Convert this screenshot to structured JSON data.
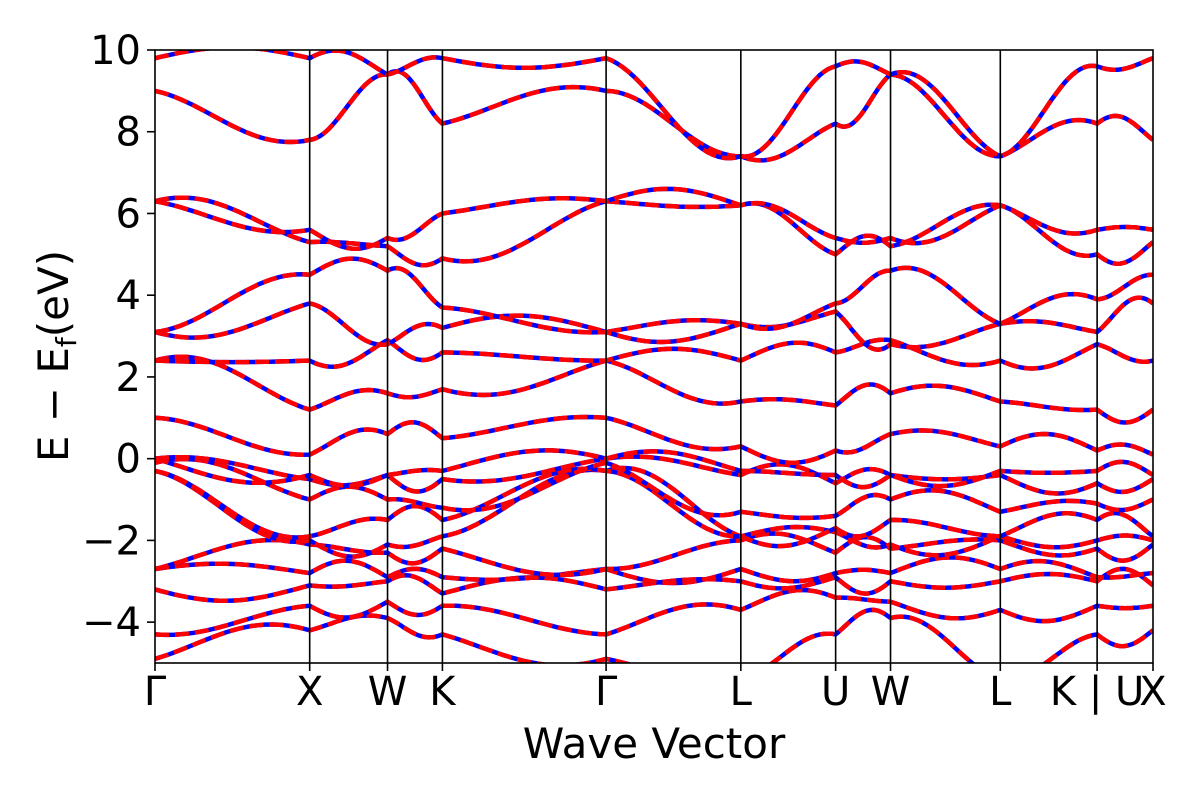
{
  "chart_data": {
    "type": "line",
    "title": "",
    "xlabel": "Wave Vector",
    "ylabel": "E − E",
    "ylabel_subscript": "f",
    "ylabel_unit": "(eV)",
    "ylim": [
      -5,
      10
    ],
    "yticks": [
      {
        "value": -4,
        "label": "−4"
      },
      {
        "value": -2,
        "label": "−2"
      },
      {
        "value": 0,
        "label": "0"
      },
      {
        "value": 2,
        "label": "2"
      },
      {
        "value": 4,
        "label": "4"
      },
      {
        "value": 6,
        "label": "6"
      },
      {
        "value": 8,
        "label": "8"
      },
      {
        "value": 10,
        "label": "10"
      }
    ],
    "k_range": [
      0,
      1
    ],
    "k_points": [
      {
        "k": 0.0,
        "label": "Γ"
      },
      {
        "k": 0.155,
        "label": "X"
      },
      {
        "k": 0.233,
        "label": "W"
      },
      {
        "k": 0.288,
        "label": "K"
      },
      {
        "k": 0.452,
        "label": "Γ"
      },
      {
        "k": 0.587,
        "label": "L"
      },
      {
        "k": 0.682,
        "label": "U"
      },
      {
        "k": 0.737,
        "label": "W"
      },
      {
        "k": 0.847,
        "label": "L"
      },
      {
        "k": 0.944,
        "label": "K | U"
      },
      {
        "k": 1.0,
        "label": "X"
      }
    ],
    "grid": false,
    "series_styles": [
      {
        "style": "solid",
        "color": "#0000ff"
      },
      {
        "style": "dashed",
        "color": "#ff0000"
      }
    ],
    "band_energies_at_k_points": [
      [
        -4.9,
        -4.2,
        -3.9,
        -4.3,
        -4.9,
        -5.4,
        -4.3,
        -3.9,
        -5.4,
        -4.3,
        -4.2
      ],
      [
        -4.3,
        -3.6,
        -3.5,
        -3.6,
        -4.3,
        -3.7,
        -3.4,
        -3.5,
        -3.7,
        -3.6,
        -3.6
      ],
      [
        -3.2,
        -3.1,
        -3.0,
        -3.3,
        -3.2,
        -3.0,
        -2.9,
        -3.0,
        -3.0,
        -3.0,
        -3.1
      ],
      [
        -2.7,
        -2.8,
        -2.9,
        -2.9,
        -2.7,
        -2.7,
        -2.8,
        -2.8,
        -2.7,
        -2.9,
        -2.8
      ],
      [
        -2.7,
        -2.1,
        -2.3,
        -2.2,
        -2.7,
        -2.0,
        -2.3,
        -2.2,
        -2.0,
        -2.2,
        -2.1
      ],
      [
        -0.3,
        -2.0,
        -2.1,
        -1.9,
        -0.3,
        -1.9,
        -1.8,
        -2.1,
        -1.9,
        -2.0,
        -2.0
      ],
      [
        -0.3,
        -1.9,
        -1.5,
        -1.5,
        -0.3,
        -1.9,
        -1.7,
        -1.5,
        -1.9,
        -1.5,
        -1.9
      ],
      [
        -0.1,
        -1.0,
        -1.0,
        -1.2,
        -0.1,
        -1.3,
        -1.4,
        -1.0,
        -1.3,
        -1.1,
        -1.0
      ],
      [
        0.0,
        -0.5,
        -0.4,
        -0.5,
        0.0,
        -0.4,
        -0.6,
        -0.4,
        -0.4,
        -0.6,
        -0.5
      ],
      [
        0.0,
        -0.4,
        -0.4,
        -0.3,
        0.0,
        -0.3,
        -0.4,
        -0.4,
        -0.3,
        -0.3,
        -0.4
      ],
      [
        1.0,
        0.1,
        0.6,
        0.5,
        1.0,
        0.3,
        0.2,
        0.6,
        0.3,
        0.2,
        0.1
      ],
      [
        2.4,
        1.2,
        1.6,
        1.7,
        2.4,
        1.4,
        1.3,
        1.6,
        1.4,
        1.2,
        1.2
      ],
      [
        2.4,
        2.4,
        2.9,
        2.6,
        2.4,
        2.4,
        2.6,
        2.9,
        2.4,
        2.8,
        2.4
      ],
      [
        3.1,
        3.8,
        2.8,
        3.2,
        3.1,
        3.3,
        3.6,
        2.8,
        3.3,
        3.1,
        3.8
      ],
      [
        3.1,
        4.5,
        4.6,
        3.7,
        3.1,
        3.3,
        3.8,
        4.6,
        3.3,
        3.9,
        4.5
      ],
      [
        6.3,
        5.3,
        5.2,
        4.9,
        6.3,
        6.2,
        5.0,
        5.2,
        6.2,
        5.0,
        5.3
      ],
      [
        6.3,
        5.6,
        5.4,
        6.0,
        6.3,
        6.2,
        5.4,
        5.4,
        6.2,
        5.6,
        5.6
      ],
      [
        9.0,
        7.8,
        9.4,
        8.2,
        9.0,
        7.4,
        8.2,
        9.4,
        7.4,
        8.2,
        7.8
      ],
      [
        9.8,
        9.8,
        9.4,
        9.8,
        9.8,
        7.4,
        9.6,
        9.4,
        7.4,
        9.6,
        9.8
      ]
    ]
  }
}
